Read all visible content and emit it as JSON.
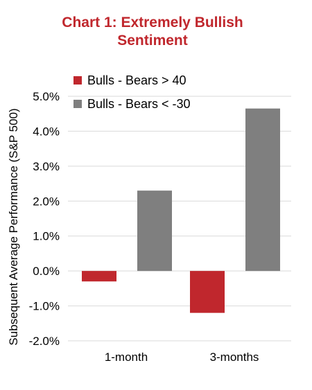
{
  "title_lines": [
    "Chart 1: Extremely Bullish",
    "Sentiment"
  ],
  "colors": {
    "title": "#c0272d",
    "series_bulls_gt_40": "#c0272d",
    "series_bulls_lt_neg30": "#7f7f7f",
    "gridline": "#d9d9d9",
    "text": "#000000"
  },
  "chart_data": {
    "type": "bar",
    "title": "Chart 1: Extremely Bullish Sentiment",
    "categories": [
      "1-month",
      "3-months"
    ],
    "series": [
      {
        "name": "Bulls - Bears > 40",
        "color": "#c0272d",
        "values": [
          -0.3,
          -1.2
        ]
      },
      {
        "name": "Bulls - Bears < -30",
        "color": "#7f7f7f",
        "values": [
          2.3,
          4.65
        ]
      }
    ],
    "xlabel": "",
    "ylabel": "Subsequent Average Performance (S&P 500)",
    "ylim": [
      -2.0,
      5.0
    ],
    "yticks": [
      "5.0%",
      "4.0%",
      "3.0%",
      "2.0%",
      "1.0%",
      "0.0%",
      "-1.0%",
      "-2.0%"
    ],
    "ytick_values": [
      5,
      4,
      3,
      2,
      1,
      0,
      -1,
      -2
    ],
    "grid": true,
    "legend_position": "top-left"
  }
}
